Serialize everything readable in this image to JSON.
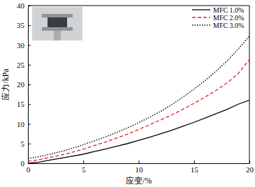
{
  "chart_data": {
    "type": "line",
    "x_label": "应变/%",
    "y_label": "应力/kPa",
    "x": [
      0,
      1,
      2,
      3,
      4,
      5,
      6,
      7,
      8,
      9,
      10,
      11,
      12,
      13,
      14,
      15,
      16,
      17,
      18,
      19,
      20
    ],
    "series": [
      {
        "name": "MFC 1.0%",
        "color": "#000000",
        "line_style": "solid",
        "values": [
          0,
          0.3,
          0.8,
          1.3,
          1.8,
          2.3,
          3.0,
          3.6,
          4.3,
          5.0,
          5.8,
          6.6,
          7.5,
          8.4,
          9.4,
          10.4,
          11.5,
          12.6,
          13.7,
          15.0,
          16.0
        ]
      },
      {
        "name": "MFC 2.0%",
        "color": "#d9232a",
        "line_style": "dashed",
        "values": [
          0.5,
          0.9,
          1.5,
          2.1,
          2.8,
          3.6,
          4.5,
          5.4,
          6.4,
          7.4,
          8.6,
          9.8,
          11.0,
          12.3,
          13.7,
          15.2,
          16.8,
          18.5,
          20.4,
          22.8,
          26.3
        ]
      },
      {
        "name": "MFC 3.0%",
        "color": "#000000",
        "line_style": "dotted",
        "values": [
          1.2,
          1.7,
          2.3,
          3.0,
          3.8,
          4.7,
          5.7,
          6.7,
          7.8,
          9.0,
          10.3,
          11.7,
          13.2,
          14.9,
          16.8,
          18.8,
          21.0,
          23.4,
          26.0,
          29.0,
          32.3
        ]
      }
    ],
    "xlim": [
      0,
      20
    ],
    "xticks": [
      0,
      5,
      10,
      15,
      20
    ],
    "ylim": [
      0,
      40
    ],
    "yticks": [
      0,
      5,
      10,
      15,
      20,
      25,
      30,
      35,
      40
    ],
    "legend": "upper right"
  }
}
